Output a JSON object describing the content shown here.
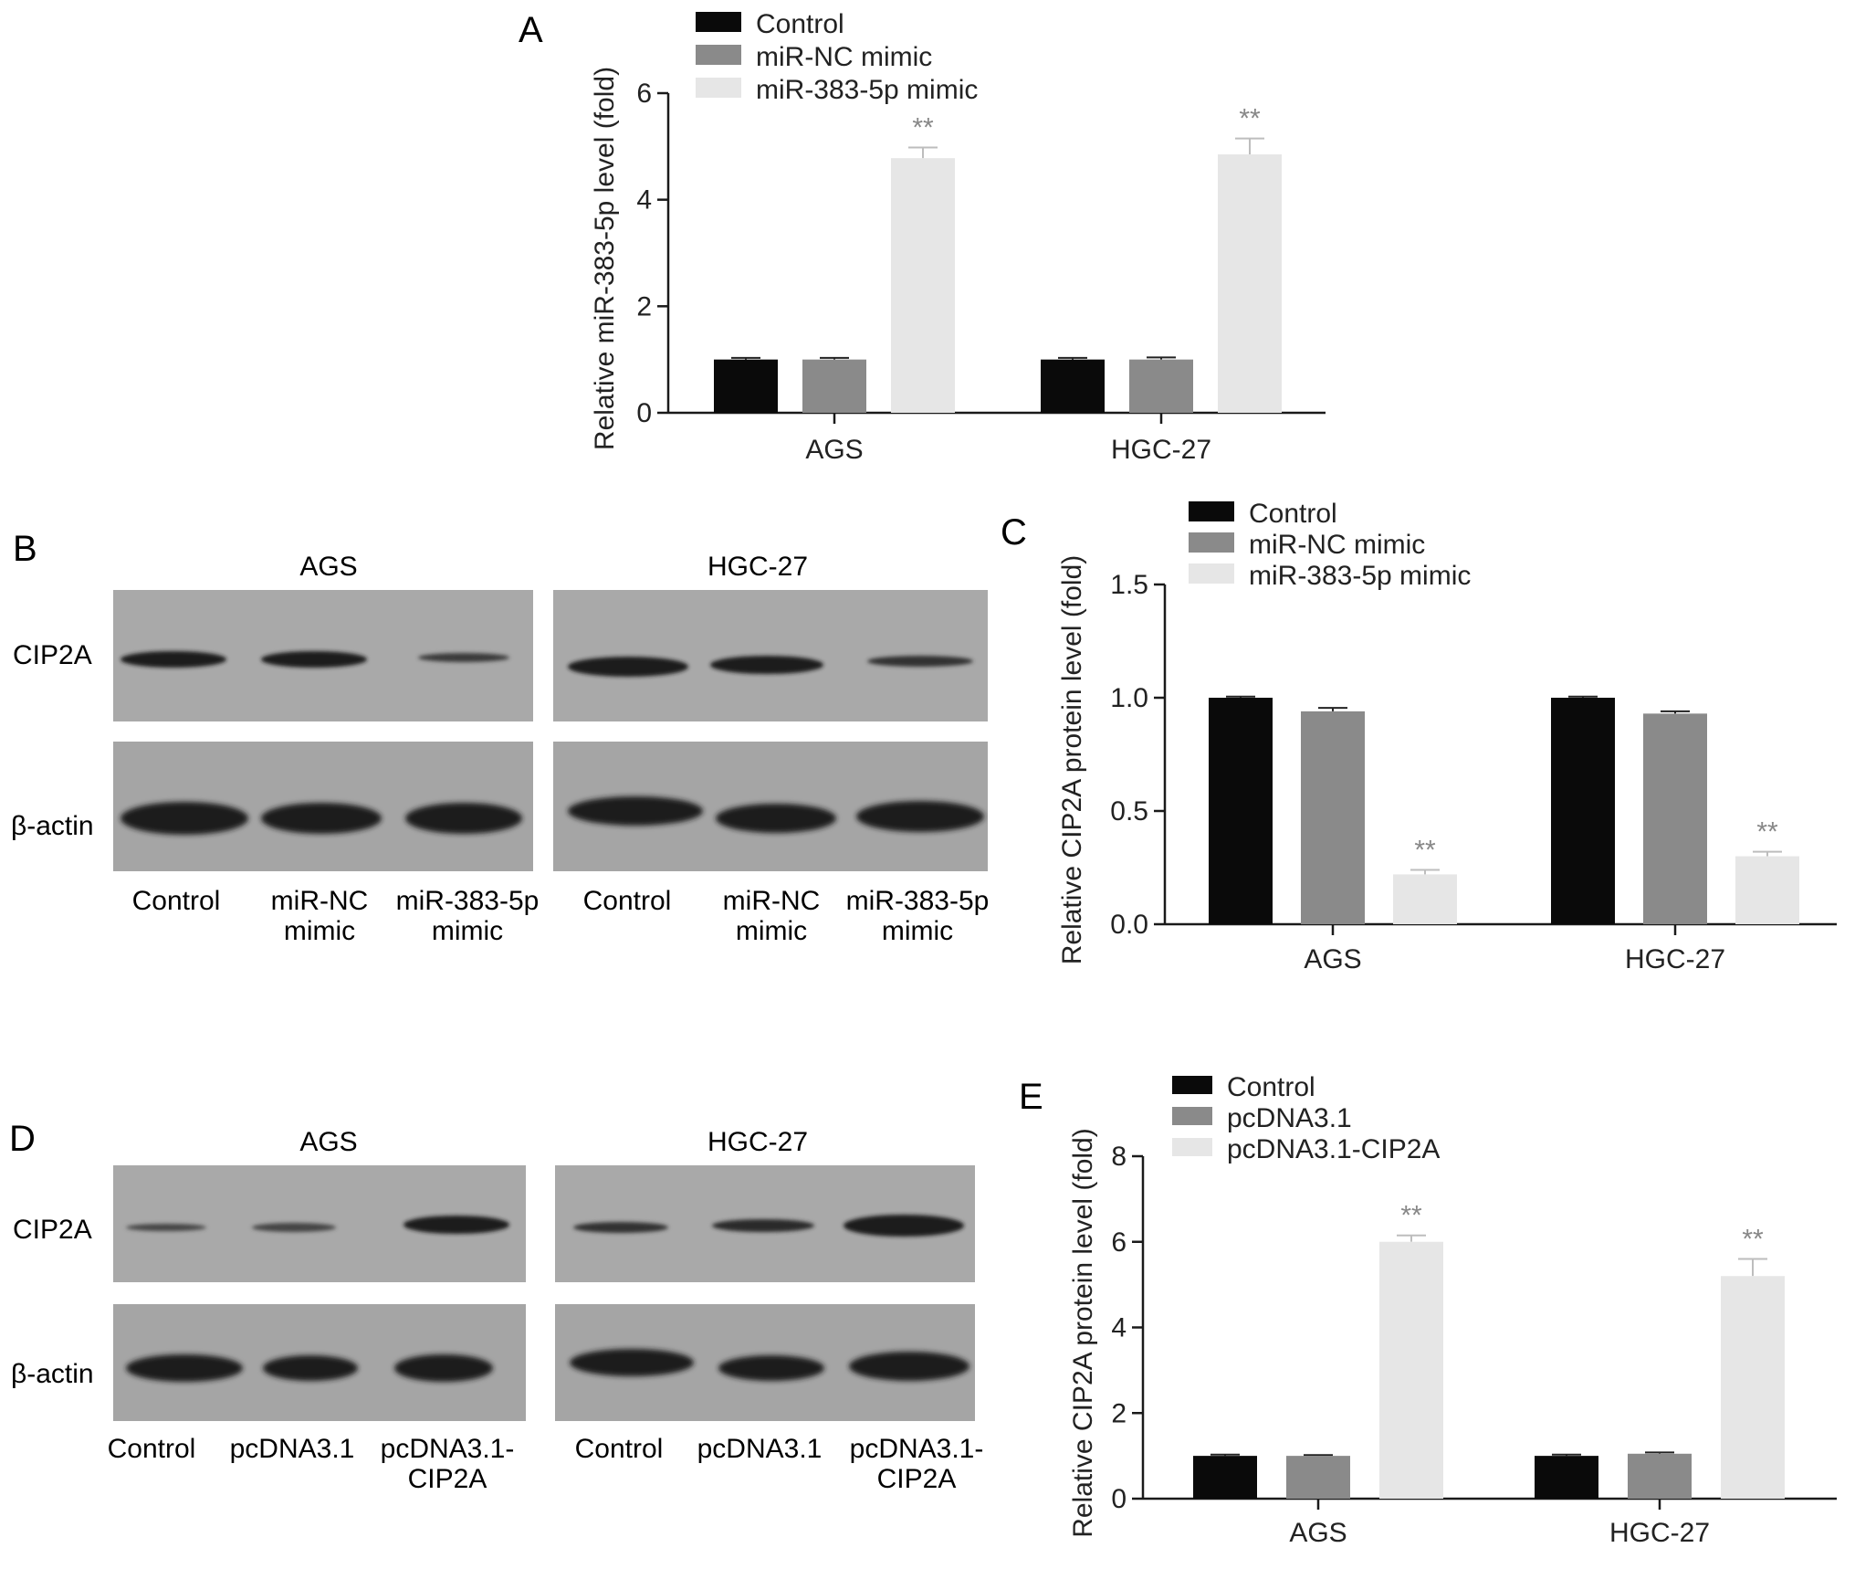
{
  "colors": {
    "control": "#0a0a0a",
    "nc": "#8a8a8a",
    "treat": "#e6e6e6",
    "axis": "#1a1a1a",
    "blot_bg": "#a7a7a7"
  },
  "chart_data": [
    {
      "panel": "A",
      "type": "bar",
      "ylabel": "Relative miR-383-5p level (fold)",
      "ylim": [
        0,
        6
      ],
      "yticks": [
        "0",
        "2",
        "4",
        "6"
      ],
      "categories": [
        "AGS",
        "HGC-27"
      ],
      "series": [
        {
          "name": "Control",
          "values": [
            1.0,
            1.0
          ],
          "errors": [
            0.03,
            0.03
          ]
        },
        {
          "name": "miR-NC mimic",
          "values": [
            1.0,
            1.0
          ],
          "errors": [
            0.03,
            0.04
          ]
        },
        {
          "name": "miR-383-5p mimic",
          "values": [
            4.78,
            4.85
          ],
          "errors": [
            0.2,
            0.3
          ]
        }
      ],
      "annotations": [
        {
          "category": 0,
          "series": 2,
          "text": "**"
        },
        {
          "category": 1,
          "series": 2,
          "text": "**"
        }
      ],
      "legend": "top-left"
    },
    {
      "panel": "C",
      "type": "bar",
      "ylabel": "Relative CIP2A protein level (fold)",
      "ylim": [
        0,
        1.5
      ],
      "yticks": [
        "0.0",
        "0.5",
        "1.0",
        "1.5"
      ],
      "categories": [
        "AGS",
        "HGC-27"
      ],
      "series": [
        {
          "name": "Control",
          "values": [
            1.0,
            1.0
          ],
          "errors": [
            0.005,
            0.005
          ]
        },
        {
          "name": "miR-NC mimic",
          "values": [
            0.94,
            0.93
          ],
          "errors": [
            0.015,
            0.01
          ]
        },
        {
          "name": "miR-383-5p mimic",
          "values": [
            0.22,
            0.3
          ],
          "errors": [
            0.02,
            0.02
          ]
        }
      ],
      "annotations": [
        {
          "category": 0,
          "series": 2,
          "text": "**"
        },
        {
          "category": 1,
          "series": 2,
          "text": "**"
        }
      ],
      "legend": "top-left"
    },
    {
      "panel": "E",
      "type": "bar",
      "ylabel": "Relative CIP2A protein level (fold)",
      "ylim": [
        0,
        8
      ],
      "yticks": [
        "0",
        "2",
        "4",
        "6",
        "8"
      ],
      "categories": [
        "AGS",
        "HGC-27"
      ],
      "series": [
        {
          "name": "Control",
          "values": [
            1.0,
            1.0
          ],
          "errors": [
            0.03,
            0.03
          ]
        },
        {
          "name": "pcDNA3.1",
          "values": [
            1.0,
            1.05
          ],
          "errors": [
            0.02,
            0.03
          ]
        },
        {
          "name": "pcDNA3.1-CIP2A",
          "values": [
            6.0,
            5.2
          ],
          "errors": [
            0.15,
            0.4
          ]
        }
      ],
      "annotations": [
        {
          "category": 0,
          "series": 2,
          "text": "**"
        },
        {
          "category": 1,
          "series": 2,
          "text": "**"
        }
      ],
      "legend": "top-left"
    }
  ],
  "blots": {
    "B": {
      "label": "B",
      "groups": [
        "AGS",
        "HGC-27"
      ],
      "rows": [
        "CIP2A",
        "β-actin"
      ],
      "lanes": [
        "Control",
        "miR-NC\nmimic",
        "miR-383-5p\nmimic",
        "Control",
        "miR-NC\nmimic",
        "miR-383-5p\nmimic"
      ]
    },
    "D": {
      "label": "D",
      "groups": [
        "AGS",
        "HGC-27"
      ],
      "rows": [
        "CIP2A",
        "β-actin"
      ],
      "lanes": [
        "Control",
        "pcDNA3.1",
        "pcDNA3.1-\nCIP2A",
        "Control",
        "pcDNA3.1",
        "pcDNA3.1-\nCIP2A"
      ]
    }
  }
}
